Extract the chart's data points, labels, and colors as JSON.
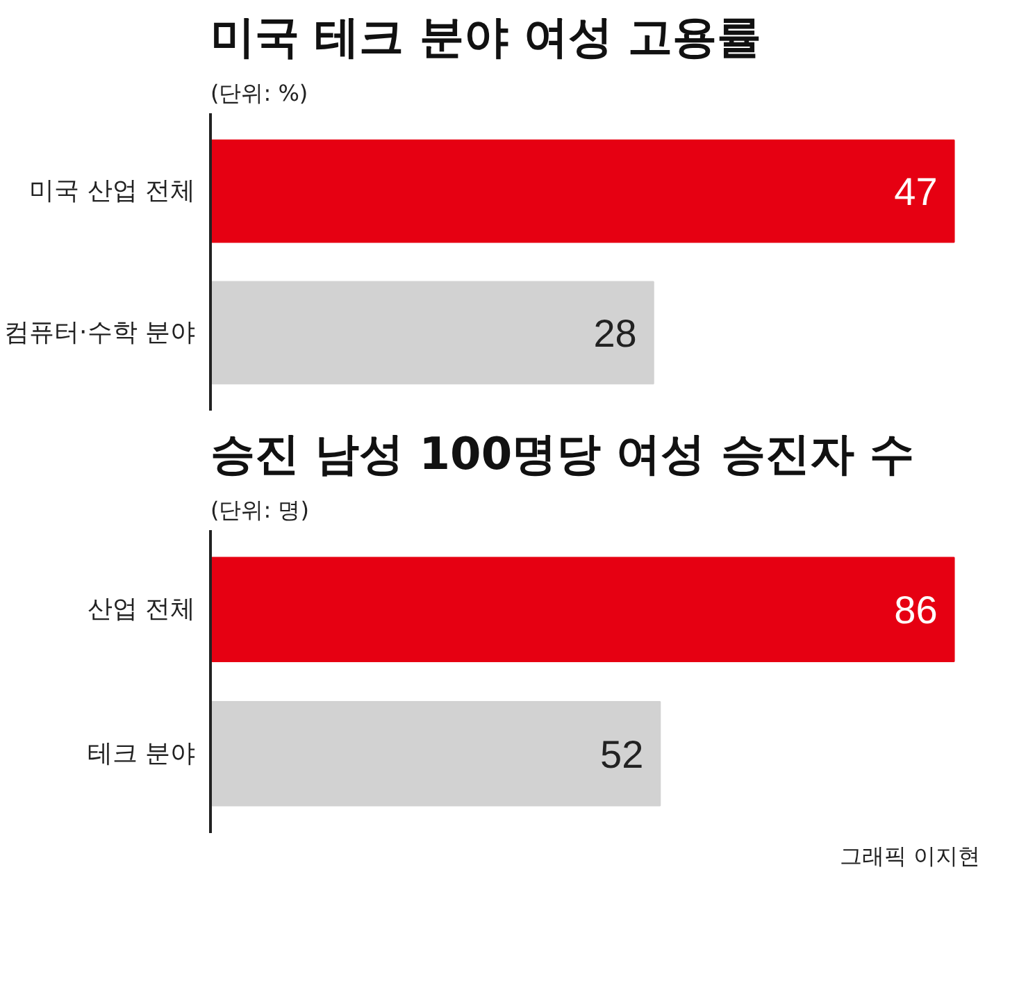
{
  "chart_data": [
    {
      "type": "bar",
      "orientation": "horizontal",
      "title": "미국 테크 분야 여성 고용률",
      "subtitle": "(단위: %)",
      "categories": [
        "미국 산업 전체",
        "컴퓨터·수학 분야"
      ],
      "values": [
        47,
        28
      ],
      "colors": [
        "#e60012",
        "#d2d2d2"
      ],
      "data_labels": true,
      "tick_labels": "y",
      "grid": false
    },
    {
      "type": "bar",
      "orientation": "horizontal",
      "title": "승진 남성 100명당 여성 승진자 수",
      "subtitle": "(단위: 명)",
      "categories": [
        "산업 전체",
        "테크 분야"
      ],
      "values": [
        86,
        52
      ],
      "colors": [
        "#e60012",
        "#d2d2d2"
      ],
      "data_labels": true,
      "tick_labels": "y",
      "grid": false,
      "annotations": [
        "그래픽 이지현"
      ]
    }
  ]
}
